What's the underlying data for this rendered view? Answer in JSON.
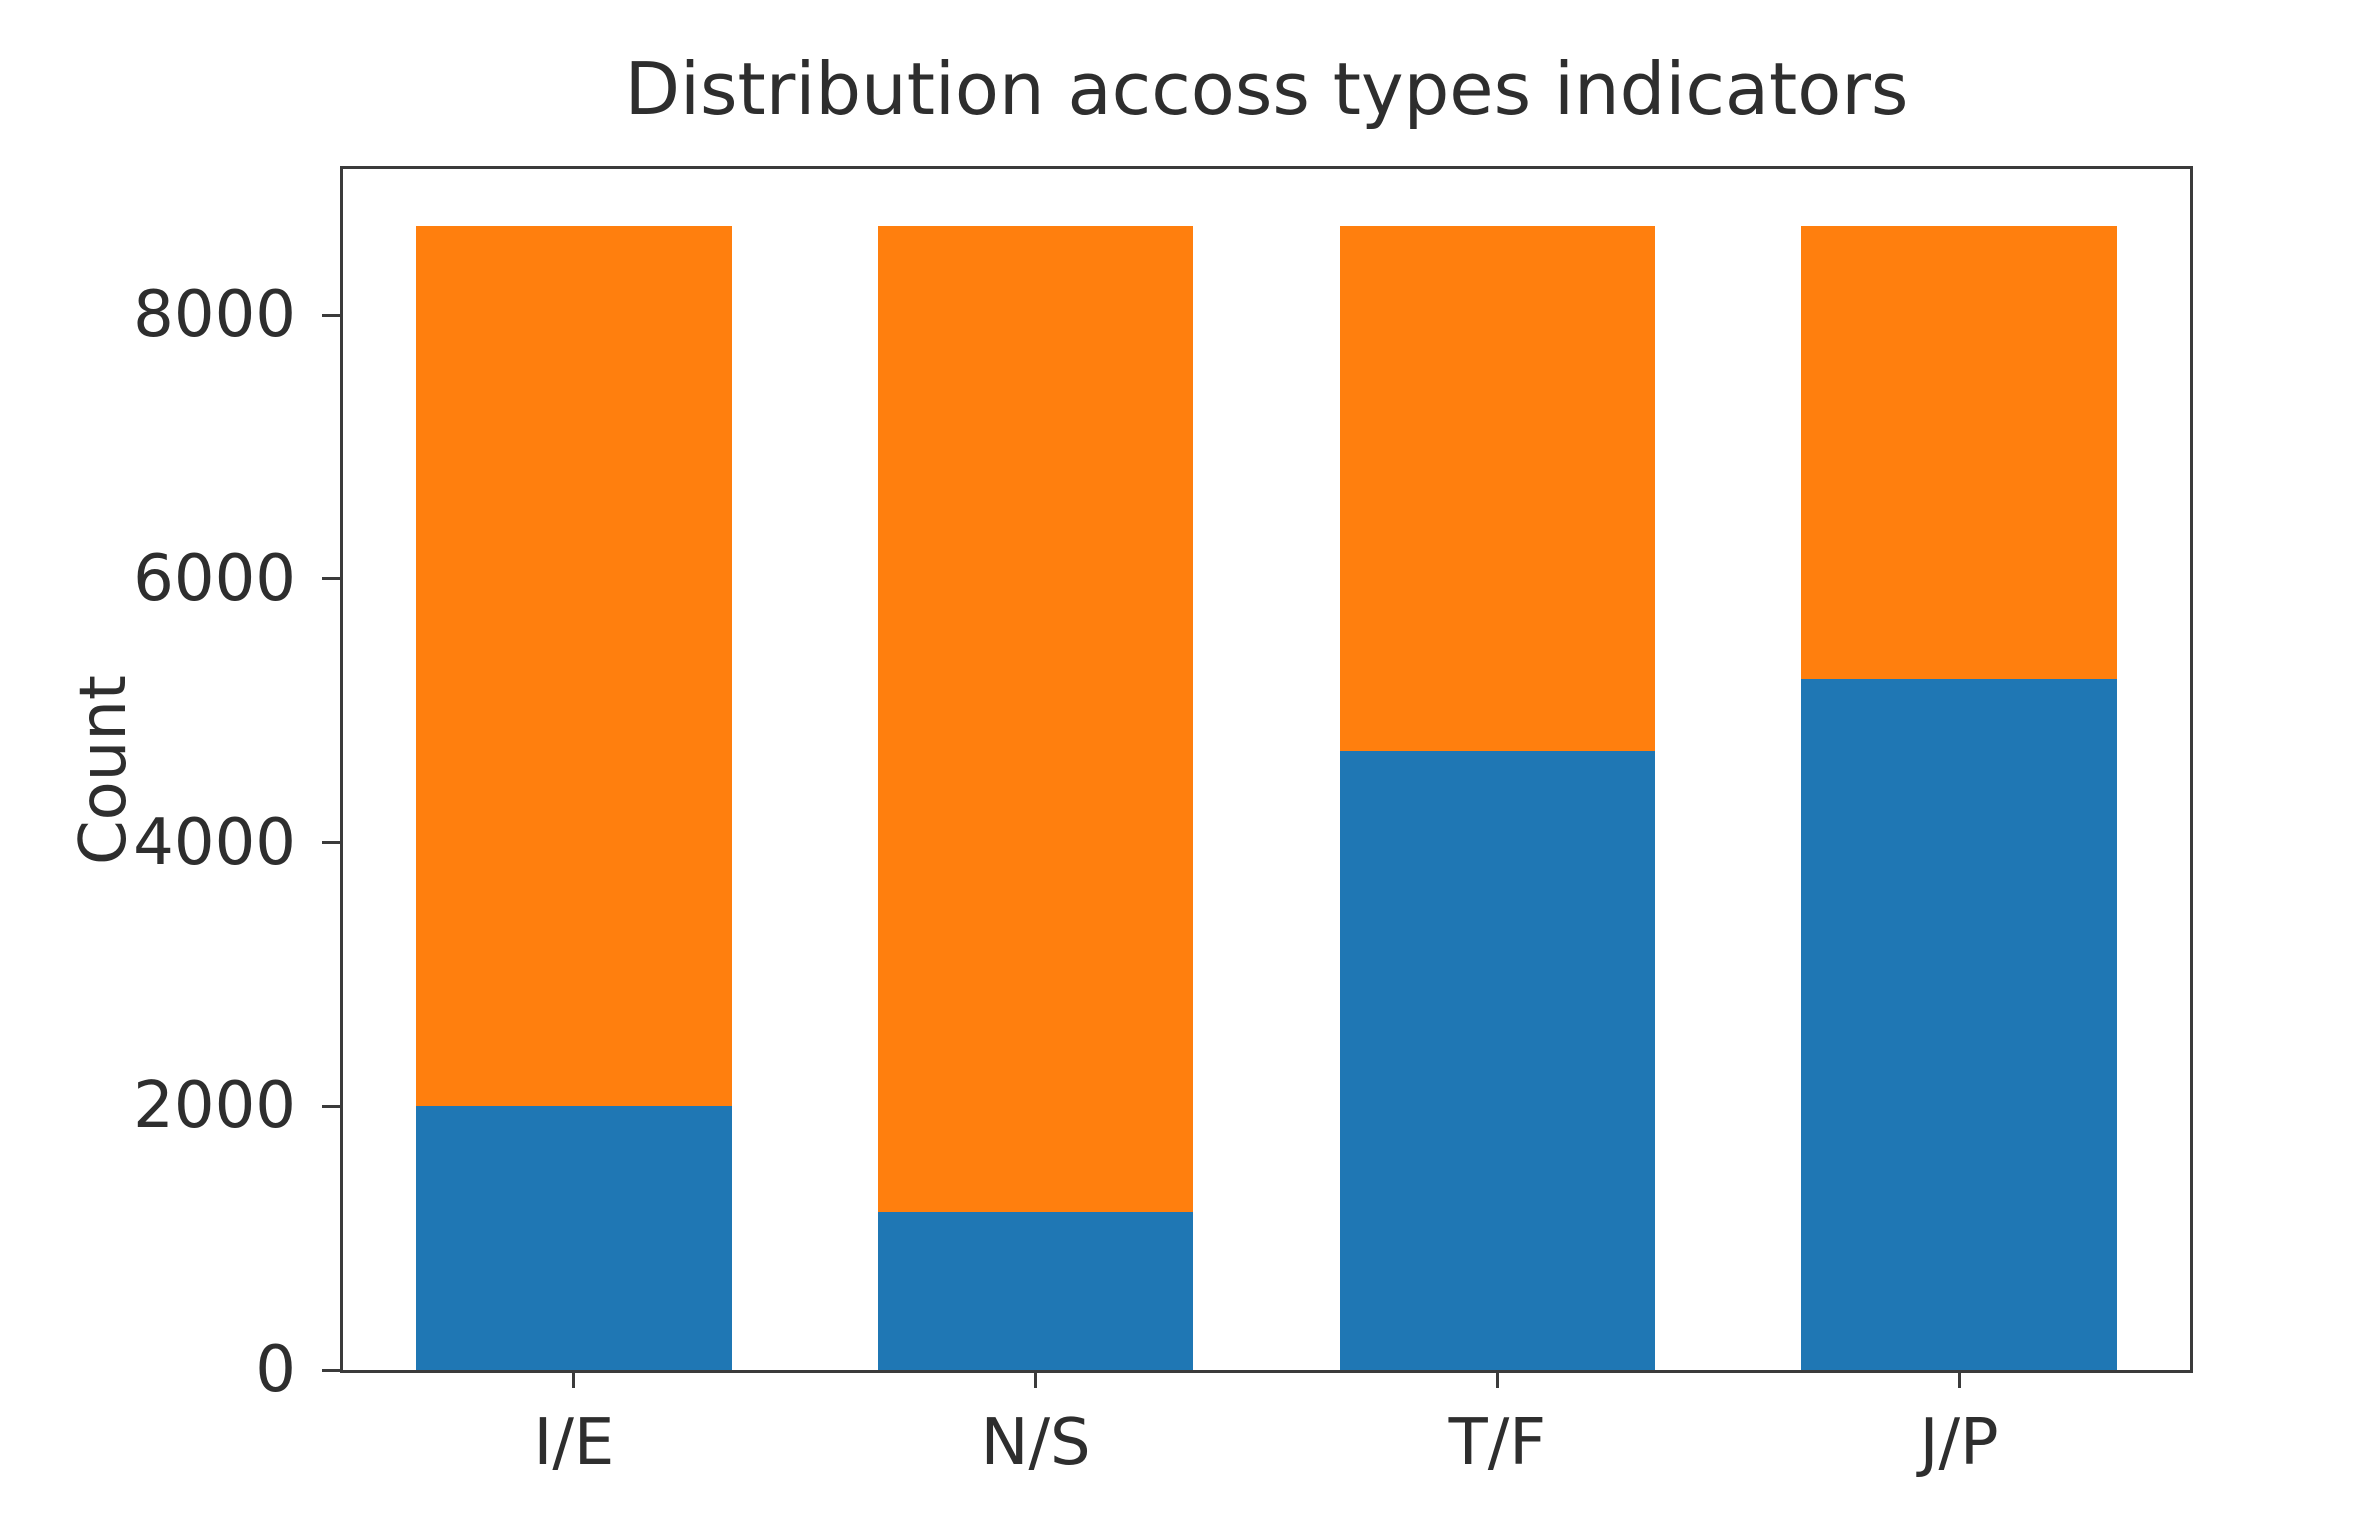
{
  "chart_data": {
    "type": "bar",
    "stacked": true,
    "title": "Distribution accoss types indicators",
    "xlabel": "",
    "ylabel": "Count",
    "categories": [
      "I/E",
      "N/S",
      "T/F",
      "J/P"
    ],
    "series": [
      {
        "name": "blue-bottom",
        "color": "#1f77b4",
        "values": [
          1999,
          1197,
          4694,
          5241
        ]
      },
      {
        "name": "orange-top",
        "color": "#ff7f0e",
        "values": [
          6676,
          7478,
          3981,
          3434
        ]
      }
    ],
    "stack_totals": [
      8675,
      8675,
      8675,
      8675
    ],
    "ylim": [
      0,
      9109
    ],
    "yticks": [
      0,
      2000,
      4000,
      6000,
      8000
    ],
    "grid": false,
    "legend": "none",
    "bar_width_fraction": 0.683
  }
}
